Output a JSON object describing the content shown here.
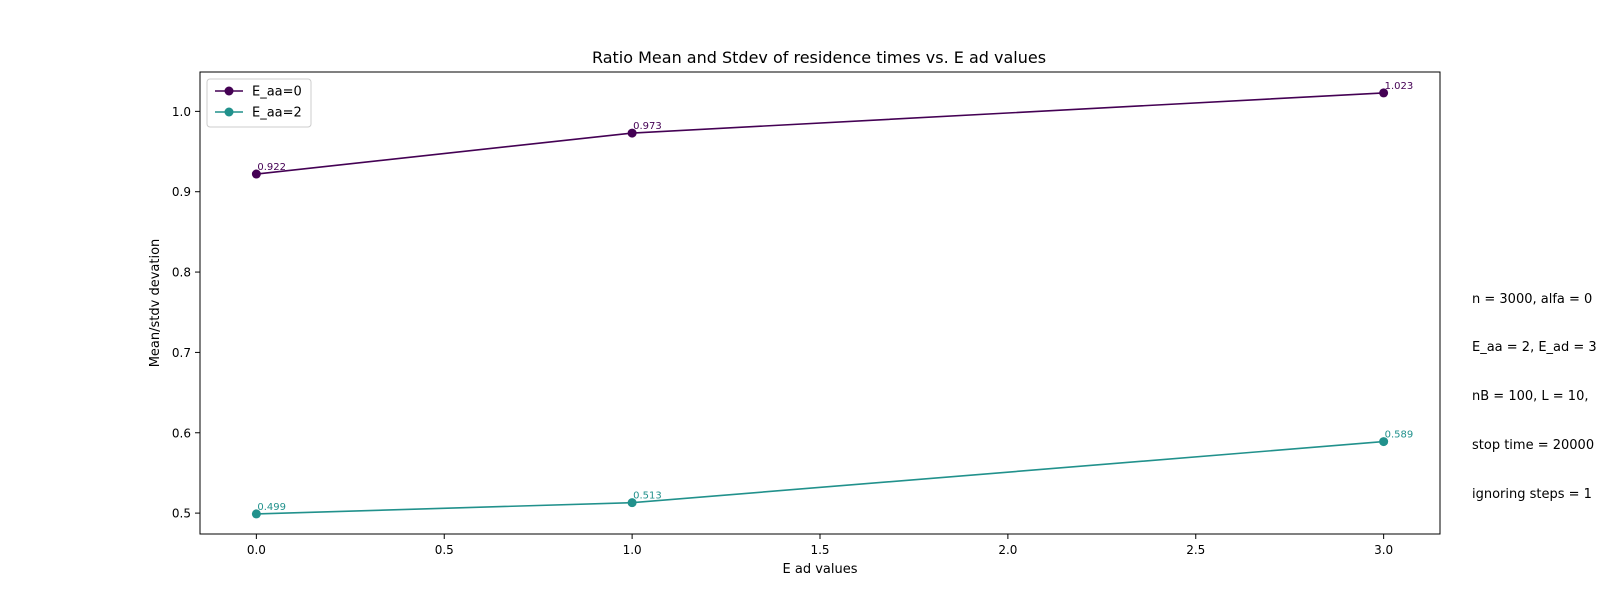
{
  "chart_data": {
    "type": "line",
    "title": "Ratio Mean and Stdev of residence times vs. E ad values",
    "xlabel": "E ad values",
    "ylabel": "Mean/stdv devation",
    "xlim": [
      -0.15,
      3.15
    ],
    "ylim": [
      0.474,
      1.049
    ],
    "xticks": [
      "0.0",
      "0.5",
      "1.0",
      "1.5",
      "2.0",
      "2.5",
      "3.0"
    ],
    "yticks": [
      "0.5",
      "0.6",
      "0.7",
      "0.8",
      "0.9",
      "1.0"
    ],
    "grid": false,
    "legend": "top-left",
    "series": [
      {
        "name": "E_aa=0",
        "color": "#440154",
        "x": [
          0,
          1,
          3
        ],
        "values": [
          0.922,
          0.973,
          1.023
        ],
        "labels": [
          "0.922",
          "0.973",
          "1.023"
        ]
      },
      {
        "name": "E_aa=2",
        "color": "#21918c",
        "x": [
          0,
          1,
          3
        ],
        "values": [
          0.499,
          0.513,
          0.589
        ],
        "labels": [
          "0.499",
          "0.513",
          "0.589"
        ]
      }
    ]
  },
  "side_note": [
    "n = 3000, alfa = 0",
    "E_aa = 2, E_ad = 3",
    "nB = 100, L = 10,",
    "stop time = 20000",
    "ignoring steps = 1"
  ]
}
